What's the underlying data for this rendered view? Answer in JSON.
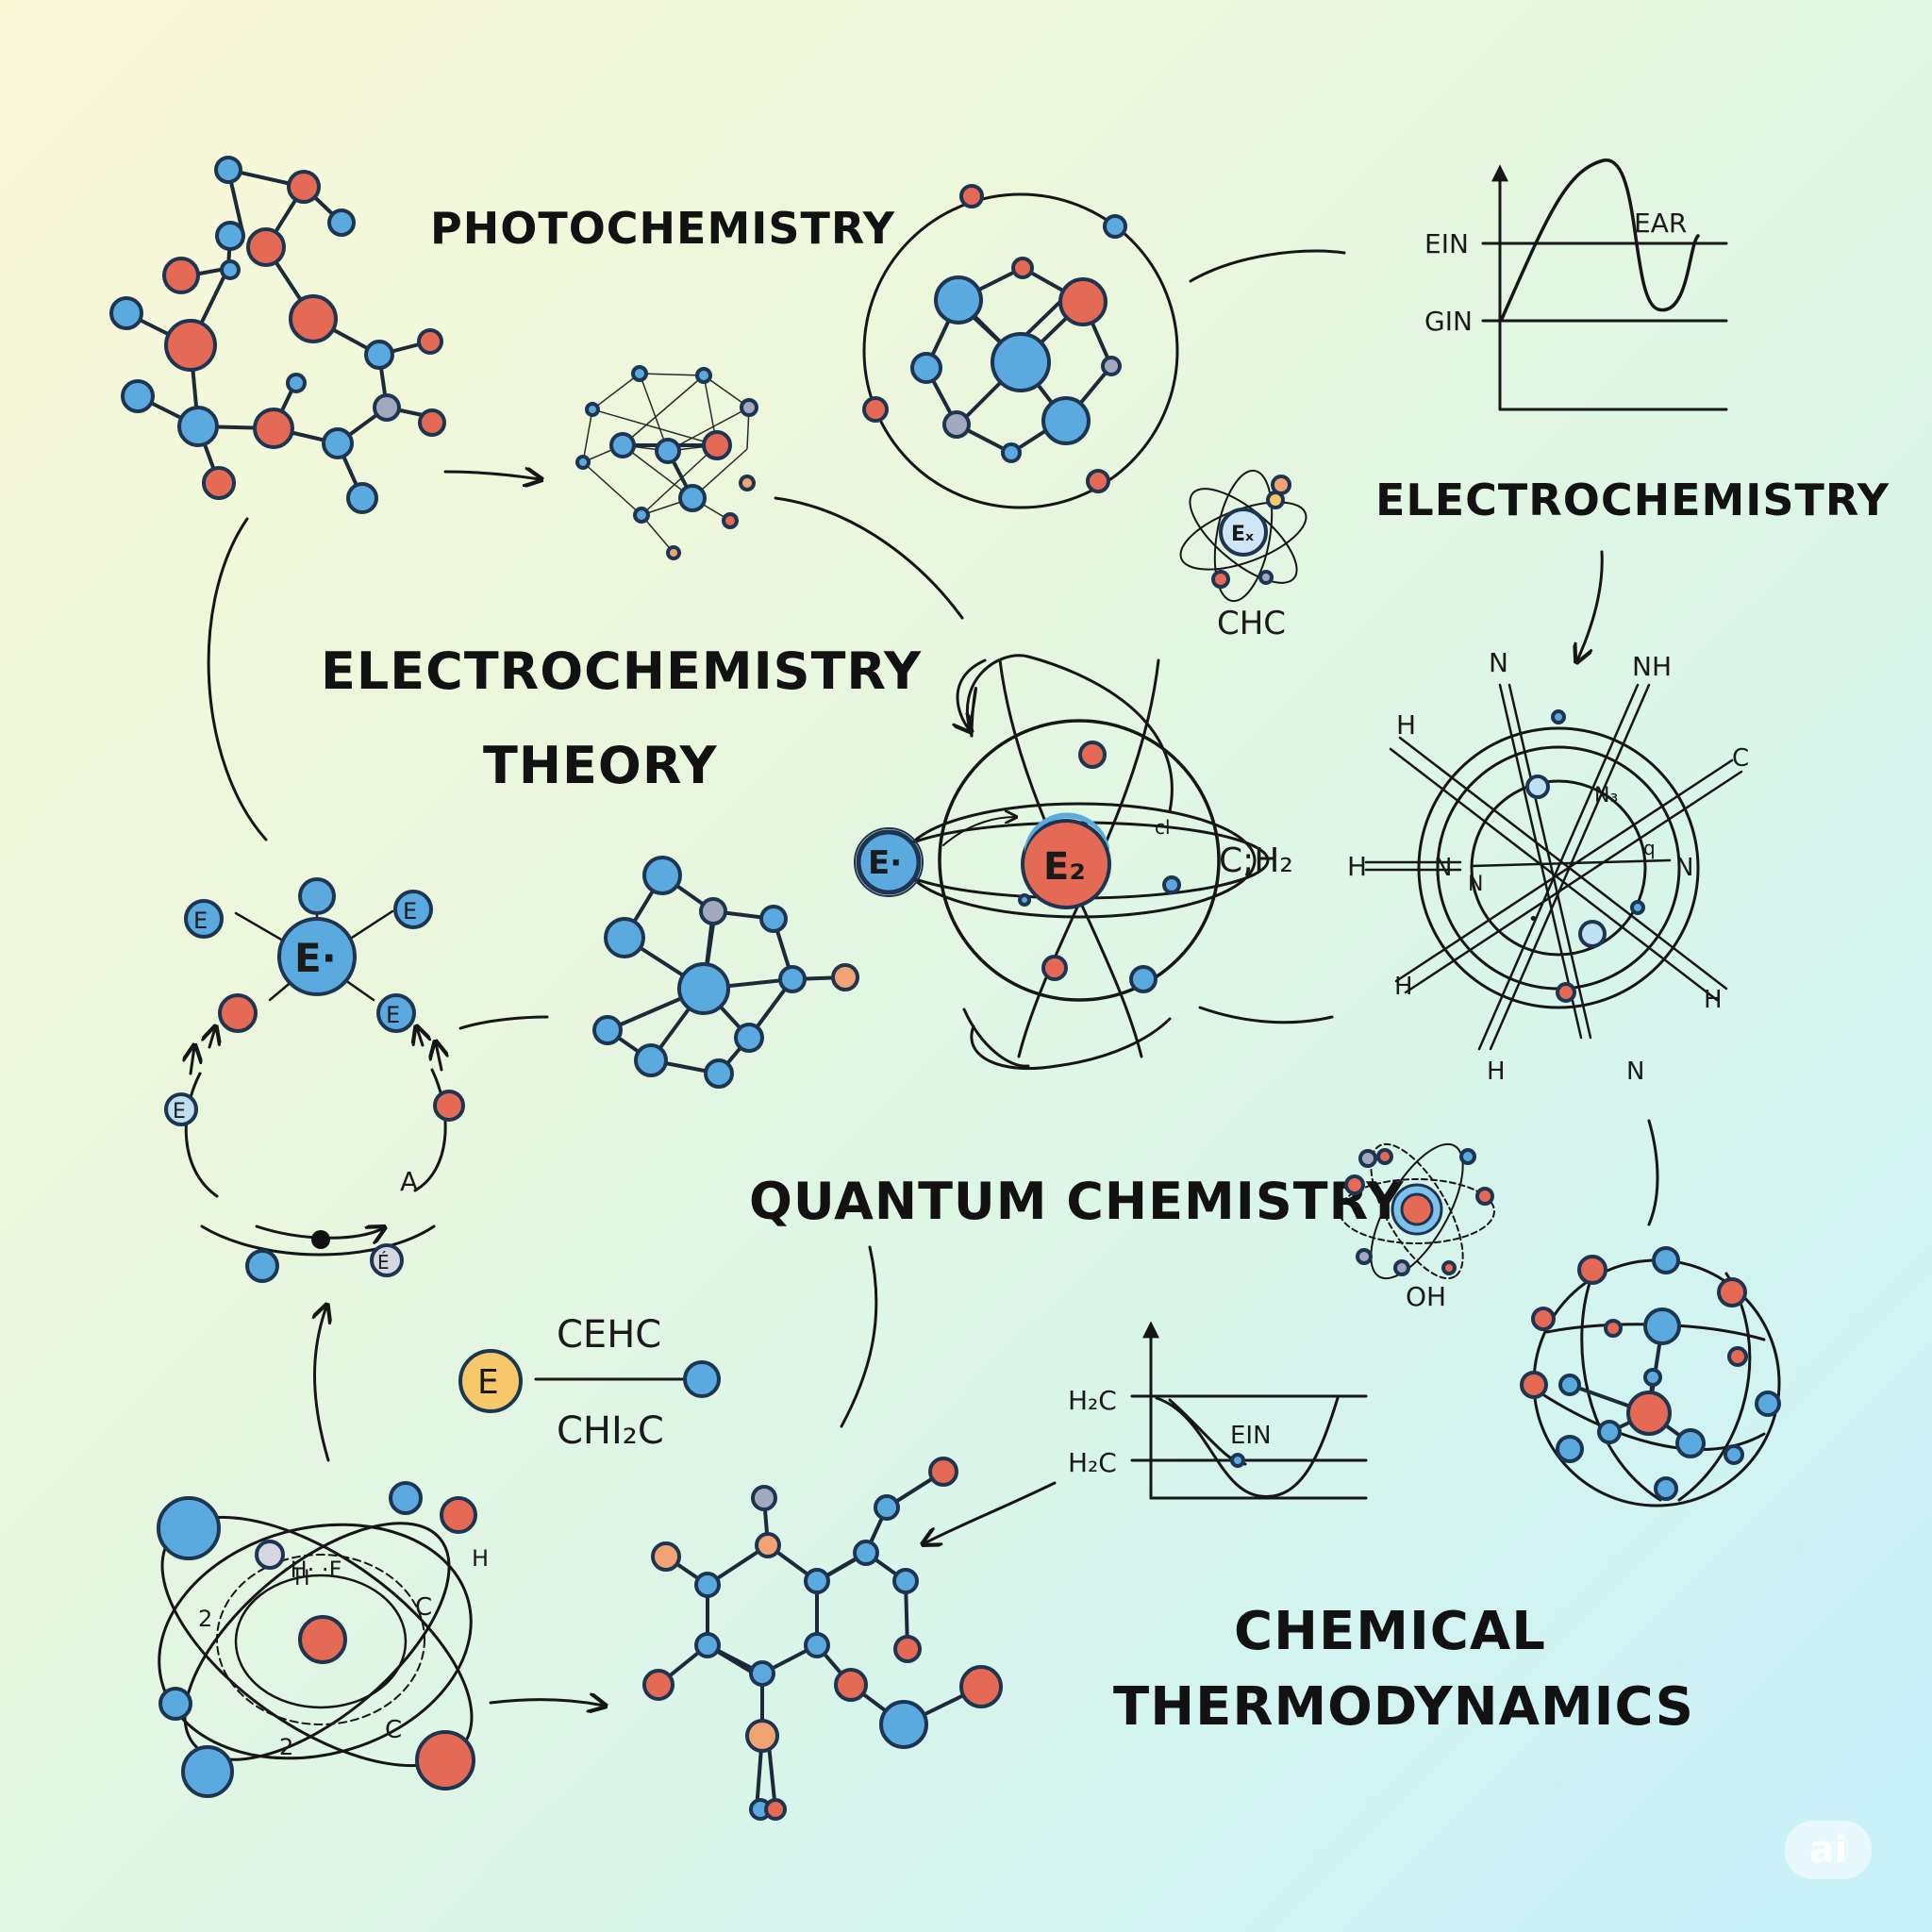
{
  "topics": {
    "photochemistry": "PHOTOCHEMISTRY",
    "electrochemistry_right": "ELECTROCHEMISTRY",
    "electrochemistry_theory_line1": "ELECTROCHEMISTRY",
    "electrochemistry_theory_line2": "THEORY",
    "quantum_chemistry": "QUANTUM CHEMISTRY",
    "chemical_thermodynamics_line1": "CHEMICAL",
    "chemical_thermodynamics_line2": "THERMODYNAMICS"
  },
  "energy_graph_top": {
    "upper_level": "EIN",
    "lower_level": "GIN",
    "curve_label": "EAR"
  },
  "energy_graph_bottom": {
    "upper_level": "H₂C",
    "lower_level": "H₂C",
    "curve_label": "EIN"
  },
  "small_atom_label": "CHC",
  "small_atom_core": "Eₓ",
  "central_atom": {
    "left_electron": "E·",
    "nucleus": "E₂",
    "side_formula": "C;H₂",
    "small_tag": "cl"
  },
  "ring_molecule_labels": [
    "N",
    "NH",
    "H",
    "C",
    "H",
    "N",
    "H",
    "N",
    "H",
    "N",
    "H",
    "N",
    "N₃",
    "q",
    "•"
  ],
  "electron_cycle": {
    "core": "E·",
    "satellites": [
      "E",
      "E",
      "E",
      "E",
      "É"
    ],
    "arc_tag": "A"
  },
  "bond_formula": {
    "badge": "E",
    "top": "CEHC",
    "bottom": "CHI₂C"
  },
  "oh_atom_label": "OH",
  "bottom_atom_labels": [
    "·H· ·F",
    "H",
    "H",
    "C",
    "2",
    "C",
    "2"
  ],
  "watermark": "ai",
  "colors": {
    "blue_atom": "#5aa9df",
    "red_atom": "#e46a55",
    "grey_atom": "#a2a8bd",
    "orange_atom": "#f1a374",
    "yellow_badge": "#f6c86a"
  }
}
